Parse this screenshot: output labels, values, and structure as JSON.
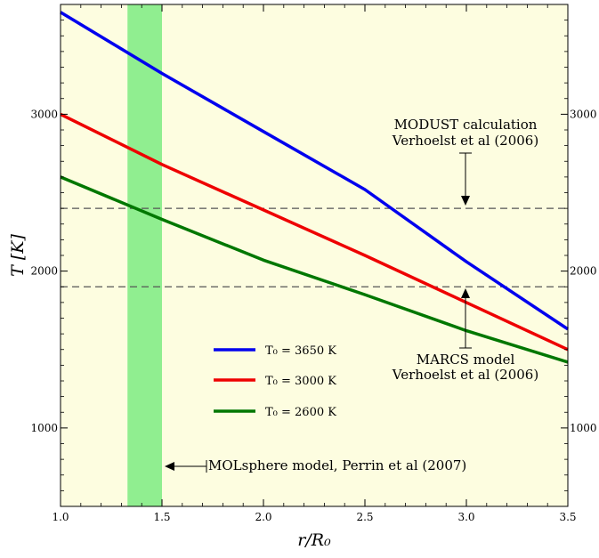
{
  "chart_data": {
    "type": "line",
    "xlabel": "r/R₀",
    "ylabel": "T [K]",
    "xlim": [
      1.0,
      3.5
    ],
    "ylim": [
      500,
      3700
    ],
    "x_ticks": [
      "1.0",
      "1.5",
      "2.0",
      "2.5",
      "3.0",
      "3.5"
    ],
    "y_ticks": [
      "1000",
      "2000",
      "3000"
    ],
    "y_ticks_right": [
      "1000",
      "2000",
      "3000"
    ],
    "background_color": "#fdfde0",
    "series": [
      {
        "name": "T₀ = 3650 K",
        "color": "#0000ee",
        "x": [
          1.0,
          1.5,
          2.0,
          2.5,
          3.0,
          3.5
        ],
        "y": [
          3650,
          3260,
          2890,
          2520,
          2060,
          1630
        ]
      },
      {
        "name": "T₀ = 3000 K",
        "color": "#ee0000",
        "x": [
          1.0,
          1.5,
          2.0,
          2.5,
          3.0,
          3.5
        ],
        "y": [
          3000,
          2680,
          2390,
          2100,
          1800,
          1500
        ]
      },
      {
        "name": "T₀ = 2600 K",
        "color": "#007700",
        "x": [
          1.0,
          1.5,
          2.0,
          2.5,
          3.0,
          3.5
        ],
        "y": [
          2600,
          2330,
          2070,
          1850,
          1620,
          1420
        ]
      }
    ],
    "reference_lines": [
      {
        "y": 2400,
        "style": "dashed",
        "color": "#555555"
      },
      {
        "y": 1900,
        "style": "dashed",
        "color": "#555555"
      }
    ],
    "shaded_band": {
      "x_range": [
        1.33,
        1.5
      ],
      "color": "#90ee90"
    },
    "annotations": {
      "modust_line1": "MODUST calculation",
      "modust_line2": "Verhoelst et al (2006)",
      "marcs_line1": "MARCS model",
      "marcs_line2": "Verhoelst et al (2006)",
      "molsphere": "MOLsphere model, Perrin et al (2007)"
    },
    "legend": {
      "placement": "center-left"
    }
  }
}
